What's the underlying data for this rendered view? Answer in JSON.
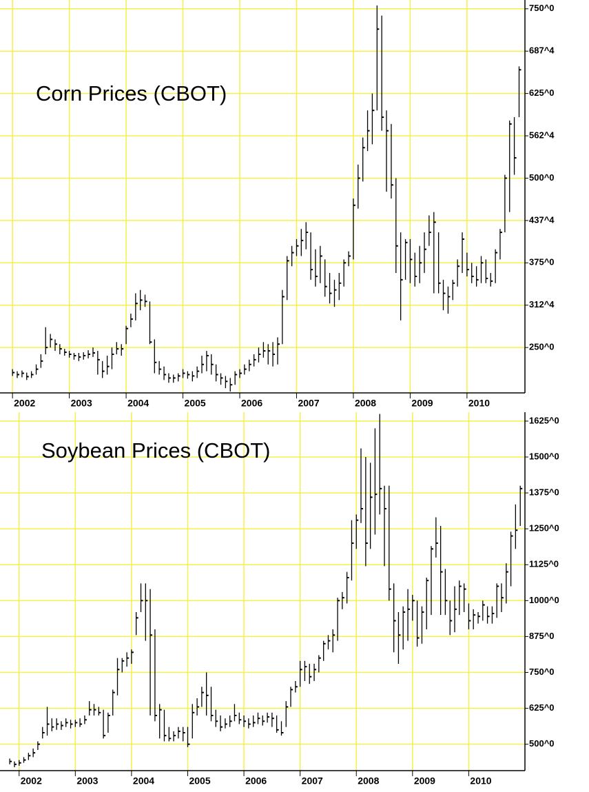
{
  "chart_data": [
    {
      "type": "ohlc",
      "title": "Corn Prices (CBOT)",
      "color": "#000000",
      "grid": true,
      "grid_color": "#f5f04a",
      "xlim": [
        2001.78,
        2011.02
      ],
      "xticks": [
        2002,
        2003,
        2004,
        2005,
        2006,
        2007,
        2008,
        2009,
        2010
      ],
      "ylim": [
        183,
        763
      ],
      "yticks": [
        {
          "value": 250,
          "label": "250^0"
        },
        {
          "value": 312.5,
          "label": "312^4"
        },
        {
          "value": 375,
          "label": "375^0"
        },
        {
          "value": 437.5,
          "label": "437^4"
        },
        {
          "value": 500,
          "label": "500^0"
        },
        {
          "value": 562.5,
          "label": "562^4"
        },
        {
          "value": 625,
          "label": "625^0"
        },
        {
          "value": 687.5,
          "label": "687^4"
        },
        {
          "value": 750,
          "label": "750^0"
        }
      ],
      "x": [
        2002.0,
        2002.083,
        2002.167,
        2002.25,
        2002.333,
        2002.417,
        2002.5,
        2002.583,
        2002.667,
        2002.75,
        2002.833,
        2002.917,
        2003.0,
        2003.083,
        2003.167,
        2003.25,
        2003.333,
        2003.417,
        2003.5,
        2003.583,
        2003.667,
        2003.75,
        2003.833,
        2003.917,
        2004.0,
        2004.083,
        2004.167,
        2004.25,
        2004.333,
        2004.417,
        2004.5,
        2004.583,
        2004.667,
        2004.75,
        2004.833,
        2004.917,
        2005.0,
        2005.083,
        2005.167,
        2005.25,
        2005.333,
        2005.417,
        2005.5,
        2005.583,
        2005.667,
        2005.75,
        2005.833,
        2005.917,
        2006.0,
        2006.083,
        2006.167,
        2006.25,
        2006.333,
        2006.417,
        2006.5,
        2006.583,
        2006.667,
        2006.75,
        2006.833,
        2006.917,
        2007.0,
        2007.083,
        2007.167,
        2007.25,
        2007.333,
        2007.417,
        2007.5,
        2007.583,
        2007.667,
        2007.75,
        2007.833,
        2007.917,
        2008.0,
        2008.083,
        2008.167,
        2008.25,
        2008.333,
        2008.417,
        2008.5,
        2008.583,
        2008.667,
        2008.75,
        2008.833,
        2008.917,
        2009.0,
        2009.083,
        2009.167,
        2009.25,
        2009.333,
        2009.417,
        2009.5,
        2009.583,
        2009.667,
        2009.75,
        2009.833,
        2009.917,
        2010.0,
        2010.083,
        2010.167,
        2010.25,
        2010.333,
        2010.417,
        2010.5,
        2010.583,
        2010.667,
        2010.75,
        2010.833,
        2010.917
      ],
      "high": [
        218,
        215,
        216,
        213,
        215,
        225,
        240,
        280,
        270,
        262,
        255,
        248,
        245,
        242,
        242,
        243,
        246,
        250,
        245,
        230,
        238,
        250,
        258,
        255,
        282,
        300,
        330,
        335,
        328,
        318,
        262,
        230,
        222,
        212,
        210,
        212,
        218,
        215,
        215,
        222,
        238,
        245,
        240,
        225,
        212,
        208,
        205,
        215,
        218,
        225,
        232,
        240,
        250,
        258,
        255,
        258,
        265,
        335,
        385,
        400,
        410,
        425,
        435,
        420,
        395,
        400,
        380,
        360,
        350,
        360,
        380,
        392,
        470,
        520,
        560,
        600,
        625,
        755,
        740,
        600,
        580,
        500,
        420,
        410,
        410,
        390,
        400,
        420,
        445,
        450,
        420,
        350,
        340,
        350,
        380,
        420,
        390,
        375,
        370,
        385,
        380,
        360,
        395,
        425,
        505,
        585,
        590,
        665
      ],
      "low": [
        208,
        205,
        206,
        202,
        205,
        210,
        220,
        240,
        250,
        245,
        240,
        238,
        235,
        232,
        230,
        232,
        234,
        236,
        210,
        205,
        210,
        218,
        240,
        238,
        255,
        280,
        290,
        305,
        310,
        255,
        212,
        210,
        202,
        198,
        198,
        200,
        205,
        204,
        200,
        205,
        212,
        215,
        210,
        200,
        195,
        190,
        185,
        195,
        205,
        210,
        215,
        222,
        228,
        235,
        225,
        222,
        225,
        255,
        320,
        370,
        385,
        385,
        395,
        350,
        340,
        345,
        325,
        315,
        310,
        320,
        340,
        370,
        380,
        455,
        495,
        540,
        550,
        600,
        570,
        480,
        470,
        360,
        290,
        350,
        345,
        340,
        345,
        360,
        400,
        330,
        330,
        305,
        300,
        320,
        340,
        360,
        355,
        345,
        340,
        345,
        345,
        340,
        345,
        380,
        420,
        450,
        505,
        590
      ],
      "close": [
        213,
        210,
        212,
        207,
        210,
        218,
        230,
        250,
        262,
        255,
        248,
        243,
        240,
        238,
        236,
        238,
        240,
        242,
        232,
        215,
        222,
        240,
        248,
        248,
        278,
        292,
        315,
        320,
        318,
        258,
        228,
        218,
        210,
        205,
        205,
        208,
        212,
        210,
        208,
        215,
        225,
        238,
        225,
        210,
        205,
        200,
        195,
        210,
        212,
        218,
        225,
        232,
        240,
        245,
        245,
        240,
        255,
        325,
        378,
        390,
        400,
        408,
        420,
        365,
        355,
        385,
        340,
        330,
        335,
        345,
        375,
        385,
        460,
        500,
        545,
        570,
        600,
        720,
        590,
        570,
        490,
        400,
        350,
        405,
        380,
        355,
        375,
        395,
        420,
        435,
        345,
        330,
        325,
        345,
        370,
        410,
        365,
        355,
        350,
        375,
        352,
        348,
        390,
        420,
        500,
        580,
        530,
        660
      ]
    },
    {
      "type": "ohlc",
      "title": "Soybean Prices (CBOT)",
      "color": "#000000",
      "grid": true,
      "grid_color": "#f5f04a",
      "xlim": [
        2001.66,
        2011.0
      ],
      "xticks": [
        2002,
        2003,
        2004,
        2005,
        2006,
        2007,
        2008,
        2009,
        2010
      ],
      "ylim": [
        408,
        1656
      ],
      "yticks": [
        {
          "value": 500,
          "label": "500^0"
        },
        {
          "value": 625,
          "label": "625^0"
        },
        {
          "value": 750,
          "label": "750^0"
        },
        {
          "value": 875,
          "label": "875^0"
        },
        {
          "value": 1000,
          "label": "1000^0"
        },
        {
          "value": 1125,
          "label": "1125^0"
        },
        {
          "value": 1250,
          "label": "1250^0"
        },
        {
          "value": 1375,
          "label": "1375^0"
        },
        {
          "value": 1500,
          "label": "1500^0"
        },
        {
          "value": 1625,
          "label": "1625^0"
        }
      ],
      "x": [
        2001.833,
        2001.917,
        2002.0,
        2002.083,
        2002.167,
        2002.25,
        2002.333,
        2002.417,
        2002.5,
        2002.583,
        2002.667,
        2002.75,
        2002.833,
        2002.917,
        2003.0,
        2003.083,
        2003.167,
        2003.25,
        2003.333,
        2003.417,
        2003.5,
        2003.583,
        2003.667,
        2003.75,
        2003.833,
        2003.917,
        2004.0,
        2004.083,
        2004.167,
        2004.25,
        2004.333,
        2004.417,
        2004.5,
        2004.583,
        2004.667,
        2004.75,
        2004.833,
        2004.917,
        2005.0,
        2005.083,
        2005.167,
        2005.25,
        2005.333,
        2005.417,
        2005.5,
        2005.583,
        2005.667,
        2005.75,
        2005.833,
        2005.917,
        2006.0,
        2006.083,
        2006.167,
        2006.25,
        2006.333,
        2006.417,
        2006.5,
        2006.583,
        2006.667,
        2006.75,
        2006.833,
        2006.917,
        2007.0,
        2007.083,
        2007.167,
        2007.25,
        2007.333,
        2007.417,
        2007.5,
        2007.583,
        2007.667,
        2007.75,
        2007.833,
        2007.917,
        2008.0,
        2008.083,
        2008.167,
        2008.25,
        2008.333,
        2008.417,
        2008.5,
        2008.583,
        2008.667,
        2008.75,
        2008.833,
        2008.917,
        2009.0,
        2009.083,
        2009.167,
        2009.25,
        2009.333,
        2009.417,
        2009.5,
        2009.583,
        2009.667,
        2009.75,
        2009.833,
        2009.917,
        2010.0,
        2010.083,
        2010.167,
        2010.25,
        2010.333,
        2010.417,
        2010.5,
        2010.583,
        2010.667,
        2010.75,
        2010.833,
        2010.917
      ],
      "high": [
        450,
        440,
        445,
        455,
        470,
        485,
        510,
        560,
        630,
        590,
        590,
        580,
        590,
        585,
        585,
        590,
        600,
        650,
        640,
        630,
        620,
        610,
        690,
        800,
        800,
        820,
        830,
        960,
        1060,
        1060,
        1040,
        900,
        640,
        620,
        560,
        545,
        560,
        560,
        560,
        640,
        660,
        700,
        750,
        700,
        620,
        600,
        590,
        600,
        640,
        610,
        600,
        590,
        600,
        610,
        600,
        610,
        610,
        600,
        580,
        650,
        700,
        720,
        790,
        790,
        780,
        780,
        810,
        860,
        880,
        900,
        1010,
        1030,
        1100,
        1280,
        1300,
        1530,
        1500,
        1480,
        1600,
        1650,
        1400,
        1400,
        1060,
        960,
        980,
        1040,
        1020,
        1000,
        980,
        1080,
        1190,
        1290,
        1260,
        1110,
        1000,
        1050,
        1070,
        1060,
        990,
        970,
        960,
        1000,
        980,
        980,
        1060,
        1060,
        1130,
        1240,
        1335,
        1400
      ],
      "low": [
        430,
        420,
        425,
        435,
        445,
        455,
        480,
        520,
        530,
        545,
        550,
        550,
        560,
        555,
        560,
        560,
        570,
        600,
        600,
        600,
        520,
        540,
        600,
        670,
        750,
        770,
        780,
        880,
        960,
        860,
        600,
        580,
        520,
        510,
        510,
        510,
        520,
        510,
        490,
        520,
        600,
        630,
        600,
        580,
        560,
        545,
        555,
        560,
        580,
        570,
        560,
        555,
        560,
        570,
        565,
        575,
        560,
        540,
        530,
        560,
        630,
        680,
        700,
        720,
        710,
        720,
        750,
        790,
        830,
        820,
        860,
        970,
        990,
        1070,
        1180,
        1270,
        1120,
        1180,
        1230,
        1300,
        1120,
        1000,
        820,
        780,
        830,
        860,
        930,
        840,
        850,
        900,
        950,
        1150,
        950,
        950,
        880,
        890,
        950,
        960,
        900,
        900,
        920,
        930,
        920,
        920,
        940,
        960,
        990,
        1050,
        1180,
        1260
      ],
      "close": [
        440,
        430,
        435,
        445,
        460,
        470,
        500,
        540,
        570,
        560,
        570,
        565,
        575,
        570,
        575,
        570,
        585,
        620,
        620,
        610,
        530,
        600,
        680,
        760,
        790,
        800,
        820,
        940,
        1000,
        1000,
        880,
        600,
        620,
        530,
        520,
        530,
        545,
        540,
        500,
        610,
        630,
        680,
        670,
        600,
        580,
        560,
        570,
        580,
        600,
        585,
        580,
        570,
        575,
        590,
        580,
        595,
        590,
        550,
        540,
        630,
        690,
        700,
        760,
        770,
        735,
        760,
        800,
        850,
        860,
        880,
        1000,
        1010,
        1080,
        1200,
        1280,
        1320,
        1200,
        1360,
        1370,
        1390,
        1320,
        1040,
        930,
        880,
        960,
        970,
        1000,
        870,
        960,
        1070,
        1180,
        1200,
        1100,
        1000,
        930,
        970,
        1050,
        1040,
        930,
        950,
        945,
        985,
        945,
        955,
        1050,
        1010,
        1100,
        1225,
        1245,
        1390
      ]
    }
  ]
}
